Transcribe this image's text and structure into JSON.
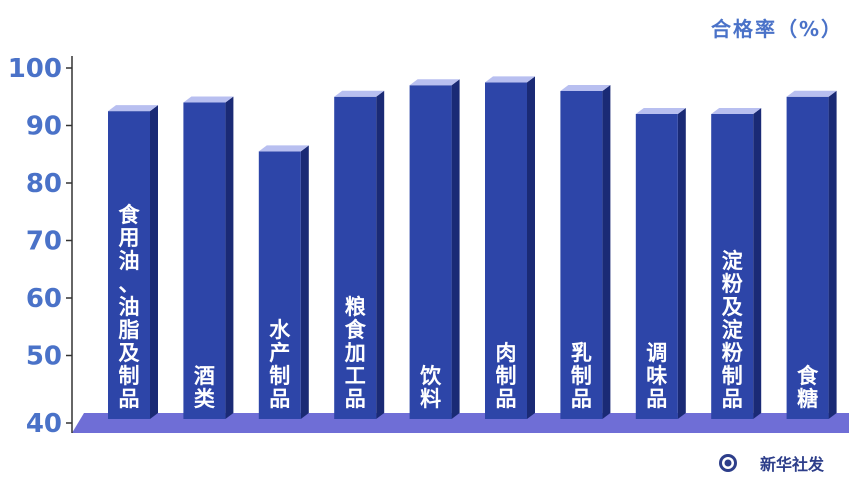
{
  "chart_data": {
    "type": "bar",
    "ylabel": "合格率（%）",
    "ylim": [
      40,
      100
    ],
    "yticks": [
      40,
      50,
      60,
      70,
      80,
      90,
      100
    ],
    "grid": false,
    "categories": [
      "食用油、油脂及制品",
      "酒类",
      "水产制品",
      "粮食加工品",
      "饮料",
      "肉制品",
      "乳制品",
      "调味品",
      "淀粉及淀粉制品",
      "食糖"
    ],
    "values": [
      92.5,
      94,
      85.5,
      95,
      97,
      97.5,
      96,
      92,
      92,
      95
    ],
    "colors": {
      "bar_front": "#2d45a8",
      "bar_side": "#1a2a75",
      "bar_top": "#b8bff0",
      "floor": "#6f6ed6",
      "axis_text": "#4a72c8",
      "label_text": "#ffffff"
    }
  },
  "credit": {
    "text": "新华社发",
    "logo_icon": "xinhua-logo-icon"
  }
}
